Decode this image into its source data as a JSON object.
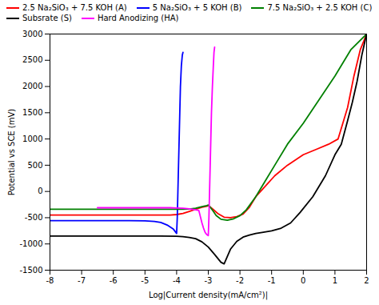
{
  "chart_data": {
    "type": "line",
    "xlabel": "Log|Current density(mA/cm²)|",
    "ylabel": "Potential vs SCE (mV)",
    "xlim": [
      -8,
      2
    ],
    "ylim": [
      -1500,
      3000
    ],
    "xticks": [
      -8,
      -7,
      -6,
      -5,
      -4,
      -3,
      -2,
      -1,
      0,
      1,
      2
    ],
    "yticks": [
      -1500,
      -1000,
      -500,
      0,
      500,
      1000,
      1500,
      2000,
      2500,
      3000
    ],
    "grid": false,
    "legend": "upper left",
    "series": [
      {
        "name": "2.5 Na₂SiO₃ + 7.5 KOH (A)",
        "color": "red",
        "x": [
          -8,
          -7,
          -6,
          -5.5,
          -5,
          -4.5,
          -4.2,
          -4.0,
          -3.8,
          -3.6,
          -3.4,
          -3.2,
          -3.05,
          -3.0,
          -2.95,
          -2.85,
          -2.7,
          -2.5,
          -2.3,
          -2.1,
          -1.9,
          -1.7,
          -1.5,
          -1.2,
          -0.9,
          -0.5,
          0.0,
          0.4,
          0.8,
          1.1,
          1.4,
          1.6,
          1.8,
          2.0
        ],
        "values": [
          -450,
          -450,
          -450,
          -450,
          -450,
          -450,
          -450,
          -440,
          -420,
          -380,
          -340,
          -300,
          -280,
          -270,
          -290,
          -340,
          -420,
          -490,
          -500,
          -480,
          -430,
          -300,
          -100,
          100,
          300,
          500,
          700,
          800,
          900,
          1000,
          1600,
          2200,
          2700,
          3000
        ]
      },
      {
        "name": "5 Na₂SiO₃ + 5 KOH (B)",
        "color": "blue",
        "x": [
          -8,
          -7,
          -6.5,
          -6.2,
          -6.0,
          -5.5,
          -5.0,
          -4.7,
          -4.5,
          -4.3,
          -4.1,
          -4.0,
          -4.0,
          -3.98,
          -3.96,
          -3.94,
          -3.92,
          -3.9,
          -3.88,
          -3.85,
          -3.82,
          -3.8
        ],
        "values": [
          -555,
          -555,
          -555,
          -555,
          -555,
          -555,
          -560,
          -570,
          -590,
          -640,
          -720,
          -800,
          -800,
          -500,
          0,
          500,
          1000,
          1500,
          2000,
          2400,
          2600,
          2650
        ]
      },
      {
        "name": "7.5 Na₂SiO₃ + 2.5 KOH (C)",
        "color": "green",
        "x": [
          -8,
          -7,
          -6,
          -5,
          -4.5,
          -4.0,
          -3.8,
          -3.6,
          -3.4,
          -3.2,
          -3.05,
          -3.0,
          -2.95,
          -2.85,
          -2.75,
          -2.6,
          -2.4,
          -2.2,
          -2.0,
          -1.8,
          -1.5,
          -1.2,
          -0.9,
          -0.5,
          0.0,
          0.5,
          1.0,
          1.5,
          2.0
        ],
        "values": [
          -340,
          -340,
          -340,
          -340,
          -340,
          -340,
          -340,
          -335,
          -320,
          -290,
          -270,
          -260,
          -290,
          -370,
          -460,
          -530,
          -550,
          -520,
          -460,
          -350,
          -100,
          200,
          500,
          900,
          1300,
          1750,
          2200,
          2700,
          3000
        ]
      },
      {
        "name": "Subsrate (S)",
        "color": "black",
        "x": [
          -8,
          -7,
          -6,
          -5,
          -4.5,
          -4.0,
          -3.8,
          -3.6,
          -3.4,
          -3.2,
          -3.0,
          -2.8,
          -2.6,
          -2.5,
          -2.5,
          -2.3,
          -2.1,
          -1.9,
          -1.7,
          -1.5,
          -1.3,
          -1.0,
          -0.7,
          -0.4,
          -0.1,
          0.3,
          0.7,
          1.0,
          1.2,
          1.4,
          1.55,
          1.7,
          1.85,
          2.0
        ],
        "values": [
          -850,
          -850,
          -850,
          -850,
          -850,
          -855,
          -860,
          -875,
          -900,
          -960,
          -1060,
          -1200,
          -1350,
          -1380,
          -1380,
          -1100,
          -950,
          -870,
          -830,
          -800,
          -780,
          -750,
          -700,
          -600,
          -400,
          -100,
          300,
          700,
          900,
          1350,
          1700,
          2100,
          2600,
          3000
        ]
      },
      {
        "name": "Hard Anodizing (HA)",
        "color": "magenta",
        "x": [
          -6.5,
          -6.0,
          -5.5,
          -5.0,
          -4.5,
          -4.2,
          -4.0,
          -3.8,
          -3.6,
          -3.4,
          -3.3,
          -3.3,
          -3.25,
          -3.2,
          -3.15,
          -3.1,
          -3.05,
          -3.0,
          -3.0,
          -2.98,
          -2.96,
          -2.94,
          -2.92,
          -2.9,
          -2.87,
          -2.84,
          -2.82,
          -2.8
        ],
        "values": [
          -310,
          -310,
          -310,
          -310,
          -310,
          -310,
          -315,
          -320,
          -330,
          -350,
          -360,
          -360,
          -480,
          -600,
          -700,
          -780,
          -820,
          -840,
          -840,
          -500,
          0,
          500,
          1000,
          1500,
          2000,
          2400,
          2650,
          2750
        ]
      }
    ]
  }
}
